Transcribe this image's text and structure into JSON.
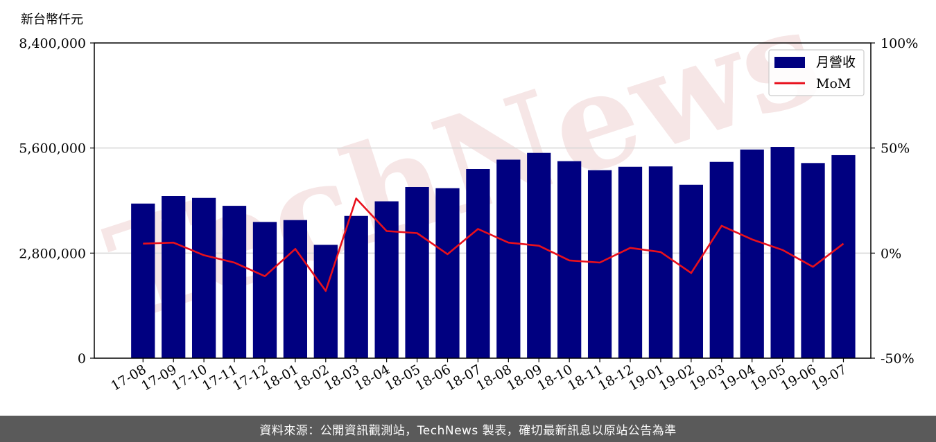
{
  "chart_data": {
    "type": "bar",
    "unit_label": "新台幣仟元",
    "categories": [
      "17-08",
      "17-09",
      "17-10",
      "17-11",
      "17-12",
      "18-01",
      "18-02",
      "18-03",
      "18-04",
      "18-05",
      "18-06",
      "18-07",
      "18-08",
      "18-09",
      "18-10",
      "18-11",
      "18-12",
      "19-01",
      "19-02",
      "19-03",
      "19-04",
      "19-05",
      "19-06",
      "19-07"
    ],
    "series": [
      {
        "name": "月營收",
        "axis": "left",
        "mark": "bar",
        "color": "#000080",
        "values": [
          4120000,
          4320000,
          4270000,
          4060000,
          3630000,
          3680000,
          3020000,
          3790000,
          4180000,
          4560000,
          4530000,
          5040000,
          5290000,
          5470000,
          5250000,
          5010000,
          5100000,
          5110000,
          4620000,
          5230000,
          5560000,
          5630000,
          5200000,
          5410000
        ]
      },
      {
        "name": "MoM",
        "axis": "right",
        "mark": "line",
        "color": "#e8101c",
        "values": [
          4.5,
          5.0,
          -1.0,
          -4.5,
          -11.0,
          2.0,
          -18.0,
          26.0,
          10.5,
          9.5,
          -0.5,
          11.5,
          5.0,
          3.5,
          -3.5,
          -4.5,
          2.5,
          0.5,
          -9.5,
          13.0,
          6.5,
          1.5,
          -6.5,
          4.5
        ]
      }
    ],
    "y_left": {
      "ylim": [
        0,
        8400000
      ],
      "ticks": [
        "0",
        "2,800,000",
        "5,600,000",
        "8,400,000"
      ]
    },
    "y_right": {
      "ylim": [
        -50,
        100
      ],
      "ticks": [
        "-50%",
        "0%",
        "50%",
        "100%"
      ]
    },
    "grid": "horizontal",
    "legend": "top-right"
  },
  "watermark": {
    "text": "TechNews",
    "color": "#f3dede"
  },
  "footer": {
    "text": "資料來源：公開資訊觀測站，TechNews 製表，確切最新訊息以原站公告為準"
  }
}
